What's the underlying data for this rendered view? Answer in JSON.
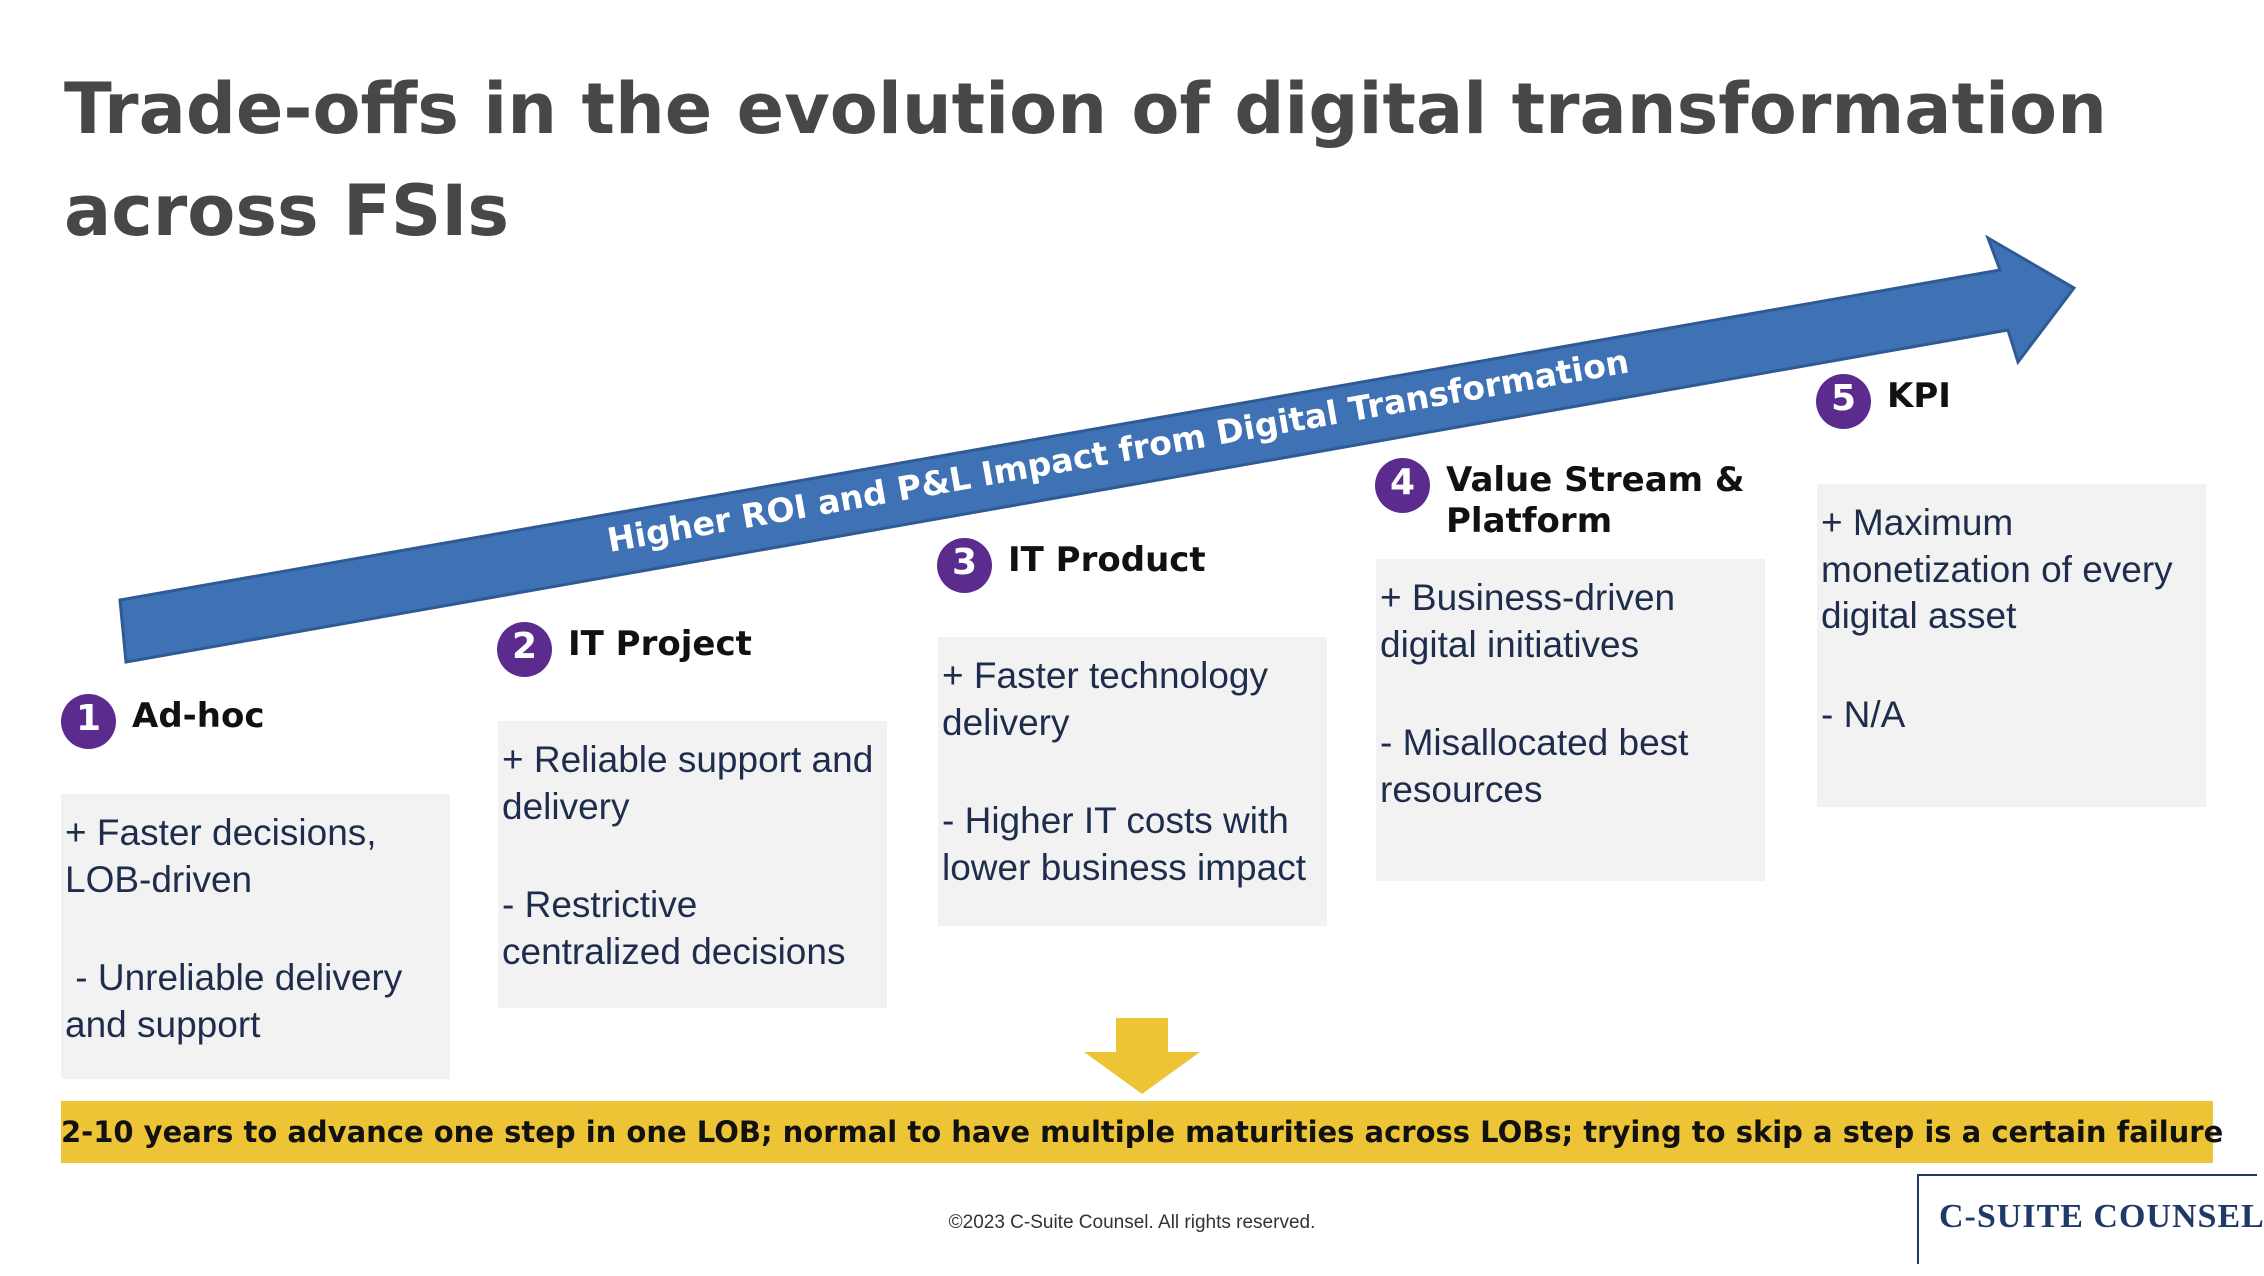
{
  "title": "Trade-offs in the evolution of digital transformation across FSIs",
  "arrow": {
    "label": "Higher ROI and P&L Impact from Digital Transformation",
    "color": "#3f72b5"
  },
  "stages": [
    {
      "number": "1",
      "title": "Ad-hoc",
      "pro": "+ Faster decisions, LOB-driven",
      "con": " - Unreliable delivery and support"
    },
    {
      "number": "2",
      "title": "IT Project",
      "pro": "+ Reliable support and delivery",
      "con": "- Restrictive centralized decisions"
    },
    {
      "number": "3",
      "title": "IT Product",
      "pro": "+ Faster technology delivery",
      "con": "- Higher IT costs with lower business impact"
    },
    {
      "number": "4",
      "title": "Value Stream & Platform",
      "pro": "+ Business-driven digital initiatives",
      "con": "- Misallocated best resources"
    },
    {
      "number": "5",
      "title": "KPI",
      "pro": "+ Maximum monetization of every digital asset",
      "con": "- N/A"
    }
  ],
  "banner": "2-10 years to advance one step in one LOB; normal to have multiple maturities across LOBs; trying to skip a step is a certain failure",
  "footer": {
    "copyright": "©2023 C-Suite Counsel.  All rights reserved.",
    "logo": "C-SUITE COUNSEL"
  },
  "colors": {
    "stage_circle": "#5b2c8e",
    "banner": "#ecc435",
    "box": "#f2f2f2",
    "down_arrow": "#ecc435"
  }
}
